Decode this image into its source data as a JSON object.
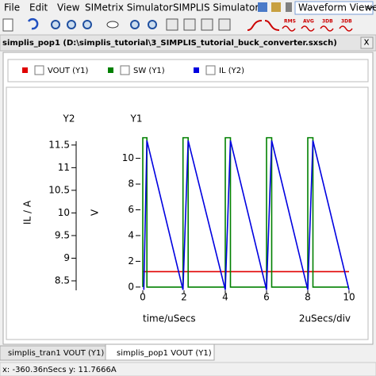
{
  "menu": [
    "File",
    "Edit",
    "View",
    "SIMetrix Simulator",
    "SIMPLIS Simulator"
  ],
  "view_selector": "Waveform Viewer",
  "toolbar_labels": [
    "RMS",
    "AVG",
    "3DB",
    "3DB"
  ],
  "window_title": "simplis_pop1 (D:\\simplis_tutorial\\3_SIMPLIS_tutorial_buck_converter.sxsch)",
  "close_button": "x",
  "chart_data": {
    "type": "line",
    "y1_title": "Y1",
    "y2_title": "Y2",
    "ylabel": "V",
    "y2label": "IL / A",
    "xlabel": "time/uSecs",
    "x_scale_note": "2uSecs/div",
    "xlim": [
      0,
      10
    ],
    "xticks": [
      0,
      2,
      4,
      6,
      8,
      10
    ],
    "ylim": [
      -0.5,
      11.7
    ],
    "yticks": [
      0,
      2,
      4,
      6,
      8,
      10
    ],
    "y2lim": [
      8.22,
      11.69
    ],
    "y2ticks": [
      8.5,
      9,
      9.5,
      10,
      10.5,
      11,
      11.5
    ],
    "grid": false,
    "series": [
      {
        "name": "VOUT (Y1)",
        "color": "#e00000",
        "axis": "y1",
        "x": [
          0,
          10
        ],
        "values": [
          1.2,
          1.2
        ]
      },
      {
        "name": "SW (Y1)",
        "color": "#008000",
        "axis": "y1",
        "x": [
          0,
          0,
          0.2,
          0.2,
          1.95,
          1.95,
          2.2,
          2.2,
          4.0,
          4.0,
          4.25,
          4.25,
          6.0,
          6.0,
          6.25,
          6.25,
          8.0,
          8.0,
          8.25,
          8.25,
          10.0
        ],
        "values": [
          0,
          11.6,
          11.6,
          0,
          0,
          11.6,
          11.6,
          0,
          0,
          11.6,
          11.6,
          0,
          0,
          11.6,
          11.6,
          0,
          0,
          11.6,
          11.6,
          0,
          0
        ]
      },
      {
        "name": "IL (Y2)",
        "color": "#0000e0",
        "axis": "y2",
        "x": [
          0.05,
          0.2,
          1.95,
          2.2,
          4.0,
          4.25,
          6.0,
          6.25,
          8.0,
          8.25,
          10.0
        ],
        "values": [
          8.3,
          11.6,
          8.3,
          11.6,
          8.3,
          11.6,
          8.3,
          11.6,
          8.3,
          11.6,
          8.3
        ]
      }
    ]
  },
  "tabs": [
    "simplis_tran1 VOUT (Y1)",
    "simplis_pop1 VOUT (Y1)"
  ],
  "status": "x: -360.36nSecs y: 11.7666A"
}
